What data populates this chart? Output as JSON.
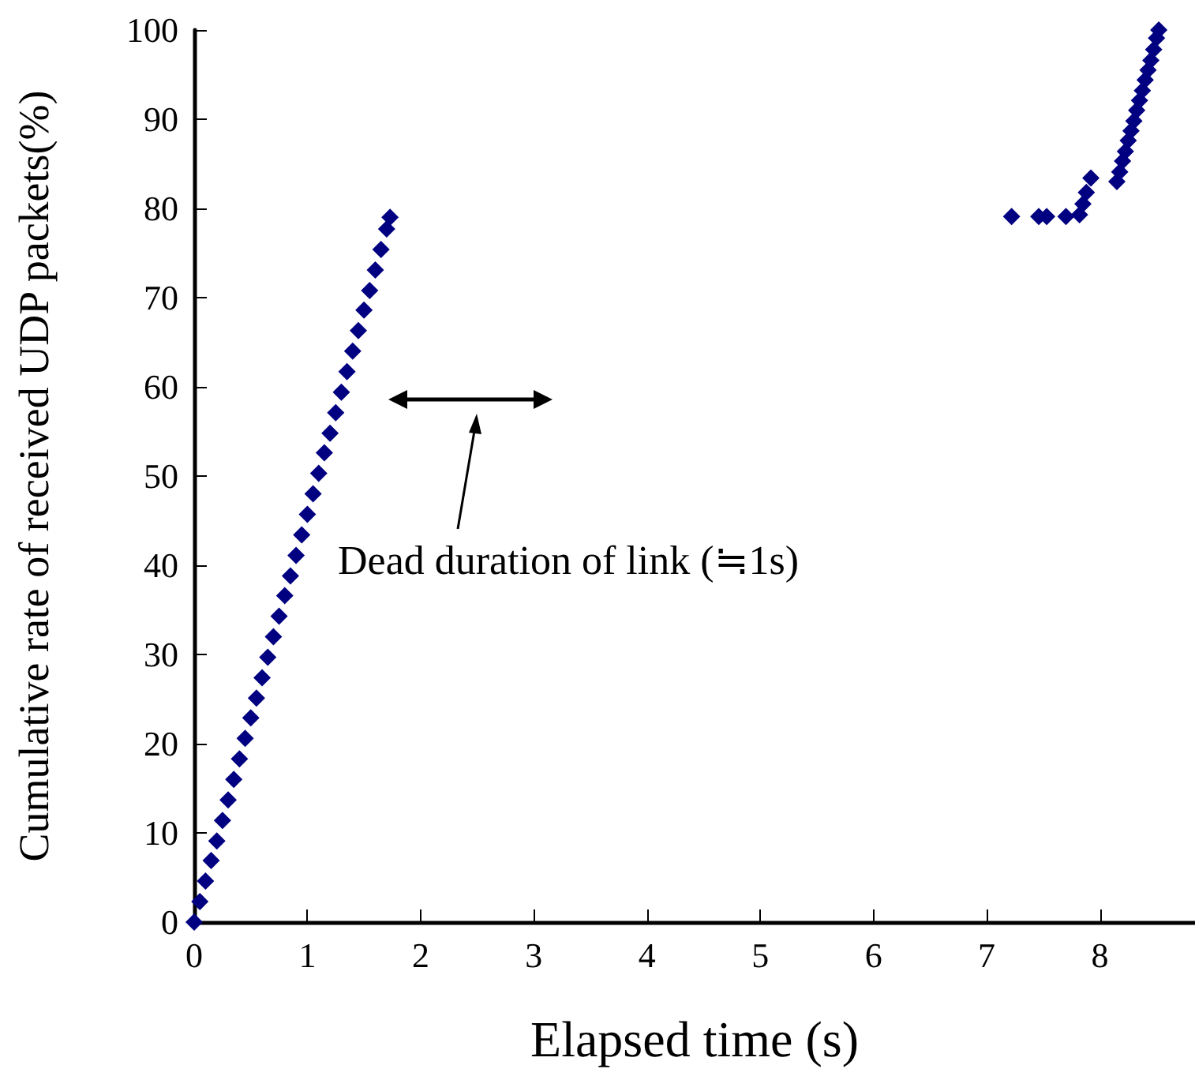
{
  "chart_data": {
    "type": "scatter",
    "xlabel": "Elapsed time (s)",
    "ylabel": "Cumulative rate of received UDP packets(%)",
    "annotations": [
      "Dead duration of link (≒1s)"
    ],
    "marker": "diamond",
    "grid": false,
    "xlim": [
      0,
      8.84
    ],
    "xticks": [
      0,
      1,
      2,
      3,
      4,
      5,
      6,
      7,
      8
    ],
    "ylim": [
      0,
      100
    ],
    "yticks": [
      0,
      10,
      20,
      30,
      40,
      50,
      60,
      70,
      80,
      90,
      100
    ],
    "series": [
      {
        "color": "#000080",
        "x": [
          0,
          0.05,
          0.1,
          0.15,
          0.2,
          0.25,
          0.3,
          0.35,
          0.4,
          0.45,
          0.5,
          0.55,
          0.6,
          0.65,
          0.7,
          0.75,
          0.8,
          0.85,
          0.9,
          0.95,
          1.0,
          1.05,
          1.1,
          1.15,
          1.2,
          1.25,
          1.3,
          1.35,
          1.4,
          1.45,
          1.5,
          1.55,
          1.6,
          1.65,
          1.7,
          1.73,
          7.22,
          7.46,
          7.53,
          7.7,
          7.82,
          7.85,
          7.88,
          7.92,
          8.15,
          8.175,
          8.2,
          8.225,
          8.25,
          8.275,
          8.3,
          8.325,
          8.35,
          8.375,
          8.4,
          8.425,
          8.45,
          8.475,
          8.5,
          8.52
        ],
        "values": [
          0,
          2.3,
          4.6,
          6.9,
          9.1,
          11.4,
          13.7,
          16.0,
          18.3,
          20.6,
          22.9,
          25.1,
          27.4,
          29.7,
          32.0,
          34.3,
          36.6,
          38.8,
          41.1,
          43.4,
          45.7,
          48.0,
          50.3,
          52.6,
          54.8,
          57.1,
          59.4,
          61.7,
          64.0,
          66.3,
          68.6,
          70.8,
          73.1,
          75.4,
          77.7,
          79.0,
          79.1,
          79.1,
          79.1,
          79.1,
          79.3,
          80.5,
          81.8,
          83.4,
          83.0,
          84.1,
          85.3,
          86.4,
          87.6,
          88.7,
          89.8,
          91.0,
          92.1,
          93.2,
          94.4,
          95.5,
          96.6,
          97.8,
          99.1,
          100
        ]
      }
    ]
  }
}
